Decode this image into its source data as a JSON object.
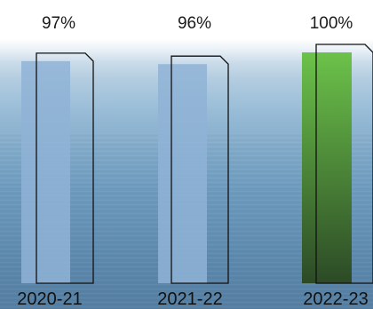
{
  "chart_data": {
    "type": "bar",
    "categories": [
      "2020-21",
      "2021-22",
      "2022-23"
    ],
    "values": [
      97,
      96,
      100
    ],
    "value_labels": [
      "97%",
      "96%",
      "100%"
    ],
    "ylim": [
      0,
      100
    ],
    "colors": {
      "past_bar": "#8fb3d6",
      "highlight_bar_top": "#6cc24a",
      "highlight_bar_bottom": "#2c4a26",
      "outline": "#111111"
    }
  }
}
